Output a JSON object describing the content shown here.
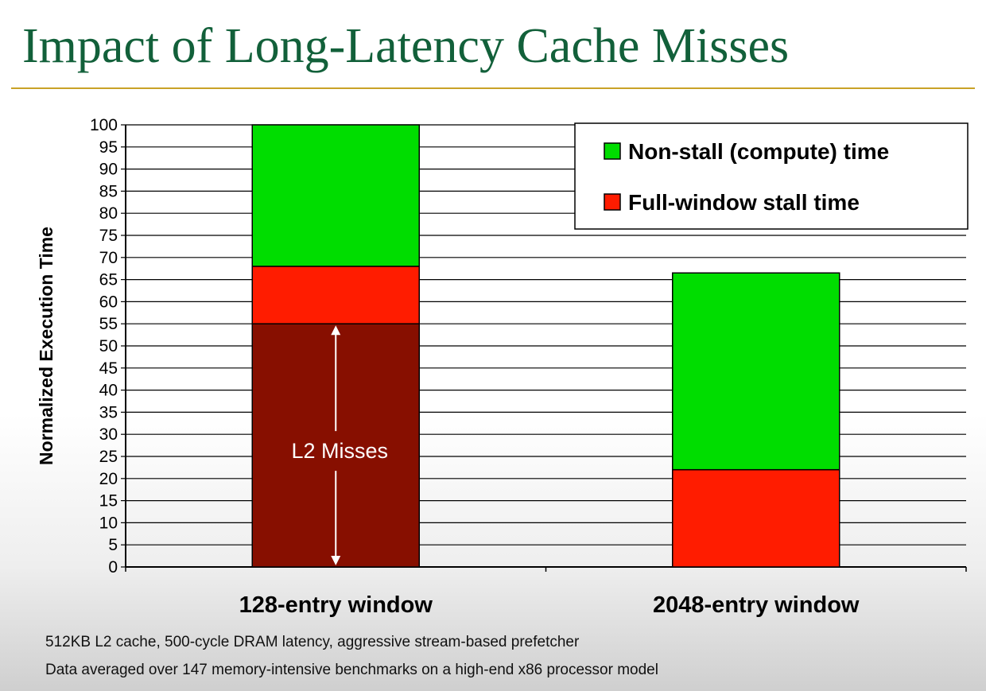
{
  "slide": {
    "title": "Impact of Long-Latency Cache Misses",
    "footnotes": [
      "512KB L2 cache, 500-cycle DRAM latency, aggressive stream-based prefetcher",
      "Data averaged over 147 memory-intensive benchmarks on a high-end x86 processor model"
    ]
  },
  "colors": {
    "title": "#12603a",
    "rule": "#c9a227",
    "non_stall": "#00dd00",
    "stall": "#ff1c00",
    "l2_misses": "#870f00"
  },
  "chart_data": {
    "type": "bar",
    "stacked": true,
    "categories": [
      "128-entry window",
      "2048-entry window"
    ],
    "ylabel": "Normalized Execution Time",
    "xlabel": "",
    "ylim": [
      0,
      100
    ],
    "ytick_step": 5,
    "grid": true,
    "legend_position": "top-right",
    "series": [
      {
        "name": "Full-window stall time",
        "values": [
          68,
          22
        ],
        "color": "#ff1c00"
      },
      {
        "name": "Non-stall (compute) time",
        "values": [
          32,
          44.5
        ],
        "color": "#00dd00"
      }
    ],
    "legend_order": [
      "Non-stall (compute) time",
      "Full-window stall time"
    ],
    "annotations": [
      {
        "category": "128-entry window",
        "label": "L2 Misses",
        "from": 0,
        "to": 55,
        "color": "#870f00"
      }
    ]
  }
}
